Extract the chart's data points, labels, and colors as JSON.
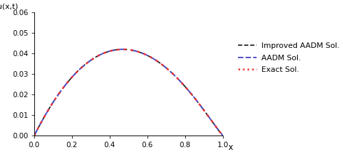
{
  "xlabel": "x",
  "ylabel": "u(x,t)",
  "xlim": [
    0.0,
    1.0
  ],
  "ylim": [
    0.0,
    0.06
  ],
  "yticks": [
    0.0,
    0.01,
    0.02,
    0.03,
    0.04,
    0.05,
    0.06
  ],
  "xticks": [
    0.0,
    0.2,
    0.4,
    0.6,
    0.8,
    1.0
  ],
  "legend_entries": [
    "Exact Sol.",
    "AADM Sol.",
    "Improved AADM Sol."
  ],
  "exact_color": "#ee3333",
  "aadm_color": "#5555cc",
  "improved_color": "#111111",
  "background_color": "#ffffff",
  "curve_C": 0.172,
  "curve_a": 1.0,
  "curve_b": 1.0,
  "n_points": 400,
  "figwidth": 5.0,
  "figheight": 2.25,
  "dpi": 100
}
